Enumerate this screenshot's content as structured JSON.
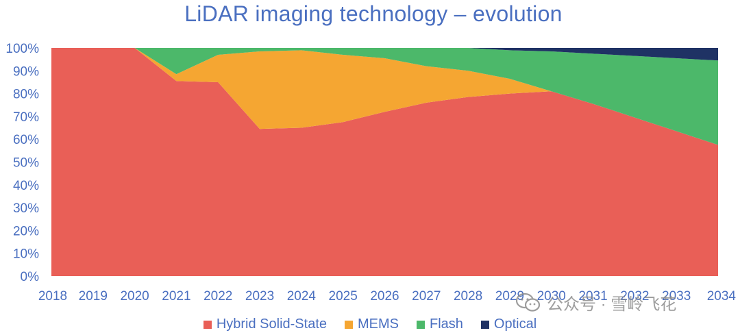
{
  "chart_data": {
    "type": "area",
    "stacked": true,
    "normalized": true,
    "title": "LiDAR imaging technology – evolution",
    "xlabel": "",
    "ylabel": "",
    "x": [
      2018,
      2019,
      2020,
      2021,
      2022,
      2023,
      2024,
      2025,
      2026,
      2027,
      2028,
      2029,
      2030,
      2031,
      2032,
      2033,
      2034
    ],
    "x_tick_labels": [
      "2018",
      "2019",
      "2020",
      "2021",
      "2022",
      "2023",
      "2024",
      "2025",
      "2026",
      "2027",
      "2028",
      "2029",
      "2030",
      "2031",
      "2032",
      "2033",
      "2034"
    ],
    "ylim": [
      0,
      100
    ],
    "y_tick_labels": [
      "0%",
      "10%",
      "20%",
      "30%",
      "40%",
      "50%",
      "60%",
      "70%",
      "80%",
      "90%",
      "100%"
    ],
    "grid": false,
    "legend_position": "bottom",
    "series": [
      {
        "name": "Hybrid Solid-State",
        "color": "#e95f57",
        "values": [
          100,
          100,
          100,
          85.5,
          85,
          64.5,
          65,
          67.5,
          72,
          76,
          78.5,
          80,
          81,
          75.5,
          69.5,
          63.5,
          57.5
        ]
      },
      {
        "name": "MEMS",
        "color": "#f5a632",
        "values": [
          0,
          0,
          0,
          3,
          12,
          34,
          34,
          29.5,
          23.5,
          16,
          11.5,
          6.5,
          0,
          0,
          0,
          0,
          0
        ]
      },
      {
        "name": "Flash",
        "color": "#4cb86a",
        "values": [
          0,
          0,
          0,
          11.5,
          3,
          1.5,
          1,
          3,
          4.5,
          8,
          10,
          12.5,
          17.5,
          22,
          27,
          32,
          37
        ]
      },
      {
        "name": "Optical",
        "color": "#1f3264",
        "values": [
          0,
          0,
          0,
          0,
          0,
          0,
          0,
          0,
          0,
          0,
          0,
          1,
          1.5,
          2.5,
          3.5,
          4.5,
          5.5
        ]
      }
    ]
  },
  "watermark": {
    "text": "公众号 · 雪岭飞花",
    "icon": "wechat-icon"
  }
}
